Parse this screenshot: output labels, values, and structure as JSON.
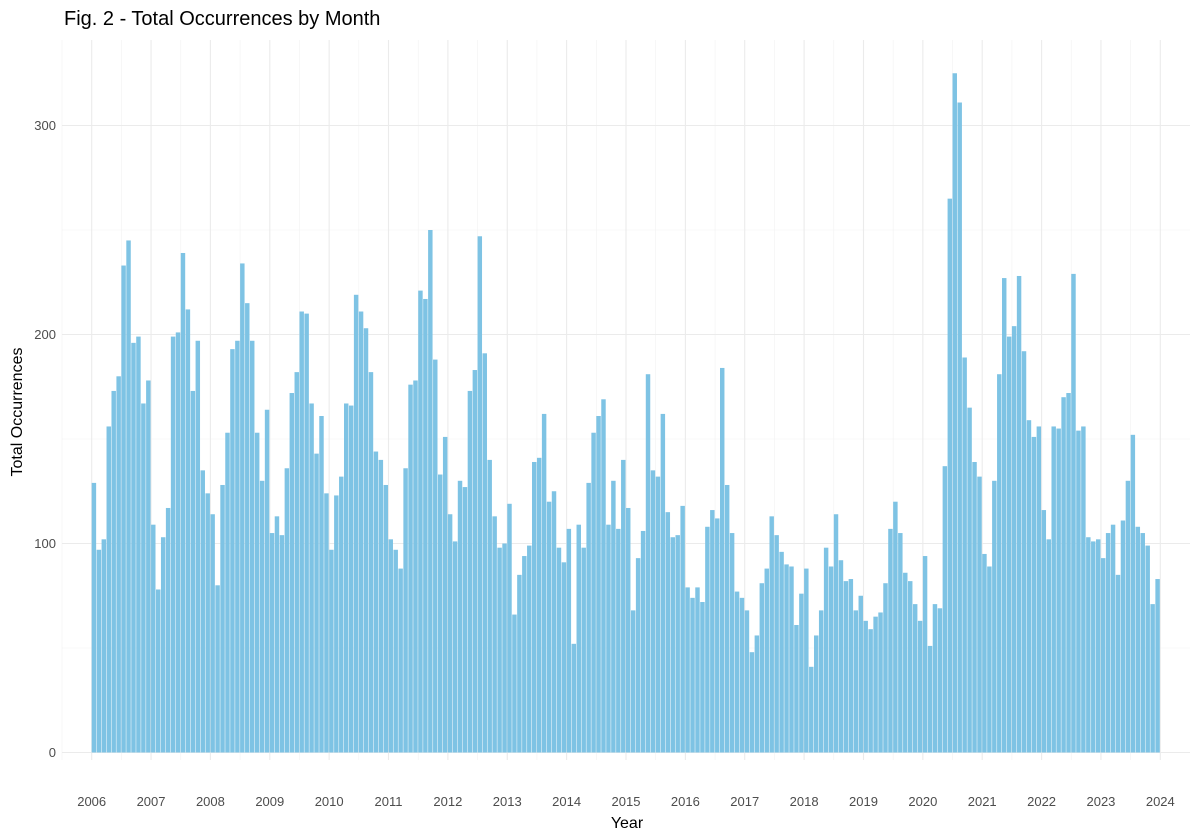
{
  "chart_data": {
    "type": "bar",
    "title": "Fig. 2 - Total Occurrences by Month",
    "xlabel": "Year",
    "ylabel": "Total Occurrences",
    "ylim": [
      0,
      335
    ],
    "xlim": [
      "2005-07",
      "2024-07"
    ],
    "grid": true,
    "legend": "none",
    "bar_color": "#7ec3e4",
    "x_ticks": [
      "2006",
      "2007",
      "2008",
      "2009",
      "2010",
      "2011",
      "2012",
      "2013",
      "2014",
      "2015",
      "2016",
      "2017",
      "2018",
      "2019",
      "2020",
      "2021",
      "2022",
      "2023",
      "2024"
    ],
    "y_ticks": [
      "0",
      "100",
      "200",
      "300"
    ],
    "start": "2006-01",
    "values": [
      129,
      97,
      102,
      156,
      173,
      180,
      233,
      245,
      196,
      199,
      167,
      178,
      109,
      78,
      103,
      117,
      199,
      201,
      239,
      212,
      173,
      197,
      135,
      124,
      114,
      80,
      128,
      153,
      193,
      197,
      234,
      215,
      197,
      153,
      130,
      164,
      105,
      113,
      104,
      136,
      172,
      182,
      211,
      210,
      167,
      143,
      161,
      124,
      97,
      123,
      132,
      167,
      166,
      219,
      211,
      203,
      182,
      144,
      140,
      128,
      102,
      97,
      88,
      136,
      176,
      178,
      221,
      217,
      250,
      188,
      133,
      151,
      114,
      101,
      130,
      127,
      173,
      183,
      247,
      191,
      140,
      113,
      98,
      100,
      119,
      66,
      85,
      94,
      99,
      139,
      141,
      162,
      120,
      125,
      98,
      91,
      107,
      52,
      109,
      98,
      129,
      153,
      161,
      169,
      109,
      130,
      107,
      140,
      117,
      68,
      93,
      106,
      181,
      135,
      132,
      162,
      115,
      103,
      104,
      118,
      79,
      74,
      79,
      72,
      108,
      116,
      112,
      184,
      128,
      105,
      77,
      74,
      68,
      48,
      56,
      81,
      88,
      113,
      104,
      96,
      90,
      89,
      61,
      76,
      88,
      41,
      56,
      68,
      98,
      89,
      114,
      92,
      82,
      83,
      68,
      75,
      63,
      59,
      65,
      67,
      81,
      107,
      120,
      105,
      86,
      82,
      71,
      63,
      94,
      51,
      71,
      69,
      137,
      265,
      325,
      311,
      189,
      165,
      139,
      132,
      95,
      89,
      130,
      181,
      227,
      199,
      204,
      228,
      192,
      159,
      151,
      156,
      116,
      102,
      156,
      155,
      170,
      172,
      229,
      154,
      156,
      103,
      101,
      102,
      93,
      105,
      109,
      85,
      111,
      130,
      152,
      108,
      105,
      99,
      71,
      83
    ]
  }
}
